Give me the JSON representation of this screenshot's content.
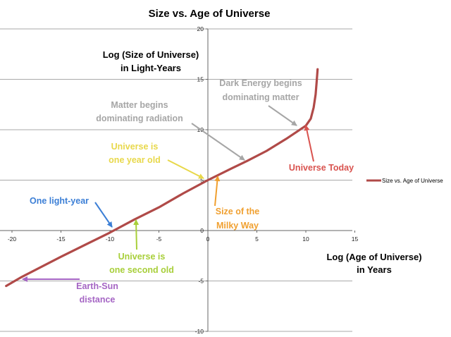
{
  "chart_data": {
    "type": "line",
    "title": "Size vs. Age of Universe",
    "xlabel": [
      "Log (Age of Universe)",
      "in Years"
    ],
    "ylabel": [
      "Log (Size of Universe)",
      "in Light-Years"
    ],
    "xlim": [
      -20,
      15
    ],
    "ylim": [
      -10,
      20
    ],
    "x_ticks": [
      -20,
      -15,
      -10,
      -5,
      0,
      5,
      10,
      15
    ],
    "y_ticks": [
      -10,
      -5,
      0,
      5,
      10,
      15,
      20
    ],
    "grid": "horizontal",
    "legend_position": "right",
    "series": [
      {
        "name": "Size vs. Age of Universe",
        "color": "#b04a48",
        "x": [
          -20.6,
          -19,
          -15,
          -10,
          -7.5,
          -5,
          -2.5,
          0,
          2.5,
          4,
          6,
          8,
          10,
          10.5,
          10.8,
          11,
          11.1,
          11.2
        ],
        "y": [
          -5.5,
          -4.6,
          -2.6,
          -0.2,
          1.1,
          2.3,
          3.7,
          5.0,
          6.2,
          6.9,
          7.9,
          9.1,
          10.4,
          11.1,
          12.2,
          13.5,
          14.7,
          16.0
        ]
      }
    ],
    "annotations": [
      {
        "lines": [
          "Dark Energy begins",
          "dominating matter"
        ],
        "color": "#a6a6a6",
        "arrow_to": [
          9.8,
          10.3
        ]
      },
      {
        "lines": [
          "Matter begins",
          "dominating radiation"
        ],
        "color": "#a6a6a6",
        "arrow_to": [
          4,
          6.9
        ]
      },
      {
        "lines": [
          "Universe is",
          "one year old"
        ],
        "color": "#e8d84a",
        "arrow_to": [
          -0.2,
          4.9
        ]
      },
      {
        "lines": [
          "Universe Today"
        ],
        "color": "#d9534f",
        "arrow_to": [
          10.1,
          10.8
        ]
      },
      {
        "lines": [
          "Size of the",
          "Milky Way"
        ],
        "color": "#f0a030",
        "arrow_to": [
          0.9,
          5.3
        ]
      },
      {
        "lines": [
          "One light-year"
        ],
        "color": "#3c7fd6",
        "arrow_to": [
          -9.8,
          -0.1
        ]
      },
      {
        "lines": [
          "Universe is",
          "one second old"
        ],
        "color": "#a8cf3a",
        "arrow_to": [
          -7.5,
          1.0
        ]
      },
      {
        "lines": [
          "Earth-Sun",
          "distance"
        ],
        "color": "#a565c4",
        "arrow_to": [
          -19,
          -4.8
        ]
      }
    ]
  }
}
